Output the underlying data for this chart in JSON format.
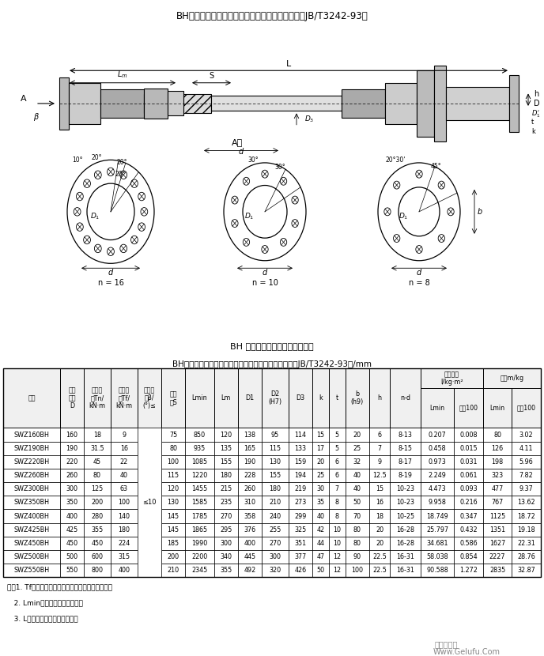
{
  "title_top": "BH型标准伸缩焊接式万向联轴器外形及安装尺寸（JB/T3242-93）",
  "table_title": "BH型标准伸缩焊接式万向联轴器基本参数和主要尺寸（JB/T3242-93）/mm",
  "caption_bottom": "BH 型标准伸缩焊接式万向联轴器",
  "note1": "注：1. Tf为在交变负荷下按疲劳强度所允许的转矩。",
  "note2": "   2. Lmin为缩短后的最小长度。",
  "note3": "   3. L为安装长度，按需要确定。",
  "watermark1": "格鲁夫机械",
  "watermark2": "Www.Gelufu.Com",
  "data_rows": [
    [
      "SWZ160BH",
      "160",
      "18",
      "9",
      "75",
      "850",
      "120",
      "138",
      "95",
      "114",
      "15",
      "5",
      "20",
      "6",
      "8-13",
      "0.207",
      "0.008",
      "80",
      "3.02"
    ],
    [
      "SWZ190BH",
      "190",
      "31.5",
      "16",
      "80",
      "935",
      "135",
      "165",
      "115",
      "133",
      "17",
      "5",
      "25",
      "7",
      "8-15",
      "0.458",
      "0.015",
      "126",
      "4.11"
    ],
    [
      "SWZ220BH",
      "220",
      "45",
      "22",
      "100",
      "1085",
      "155",
      "190",
      "130",
      "159",
      "20",
      "6",
      "32",
      "9",
      "8-17",
      "0.973",
      "0.031",
      "198",
      "5.96"
    ],
    [
      "SWZ260BH",
      "260",
      "80",
      "40",
      "115",
      "1220",
      "180",
      "228",
      "155",
      "194",
      "25",
      "6",
      "40",
      "12.5",
      "8-19",
      "2.249",
      "0.061",
      "323",
      "7.82"
    ],
    [
      "SWZ300BH",
      "300",
      "125",
      "63",
      "120",
      "1455",
      "215",
      "260",
      "180",
      "219",
      "30",
      "7",
      "40",
      "15",
      "10-23",
      "4.473",
      "0.093",
      "477",
      "9.37"
    ],
    [
      "SWZ350BH",
      "350",
      "200",
      "100",
      "130",
      "1585",
      "235",
      "310",
      "210",
      "273",
      "35",
      "8",
      "50",
      "16",
      "10-23",
      "9.958",
      "0.216",
      "767",
      "13.62"
    ],
    [
      "SWZ400BH",
      "400",
      "280",
      "140",
      "145",
      "1785",
      "270",
      "358",
      "240",
      "299",
      "40",
      "8",
      "70",
      "18",
      "10-25",
      "18.749",
      "0.347",
      "1125",
      "18.72"
    ],
    [
      "SWZ425BH",
      "425",
      "355",
      "180",
      "145",
      "1865",
      "295",
      "376",
      "255",
      "325",
      "42",
      "10",
      "80",
      "20",
      "16-28",
      "25.797",
      "0.432",
      "1351",
      "19.18"
    ],
    [
      "SWZ450BH",
      "450",
      "450",
      "224",
      "185",
      "1990",
      "300",
      "400",
      "270",
      "351",
      "44",
      "10",
      "80",
      "20",
      "16-28",
      "34.681",
      "0.586",
      "1627",
      "22.31"
    ],
    [
      "SWZ500BH",
      "500",
      "600",
      "315",
      "200",
      "2200",
      "340",
      "445",
      "300",
      "377",
      "47",
      "12",
      "90",
      "22.5",
      "16-31",
      "58.038",
      "0.854",
      "2227",
      "28.76"
    ],
    [
      "SWZ550BH",
      "550",
      "800",
      "400",
      "210",
      "2345",
      "355",
      "492",
      "320",
      "426",
      "50",
      "12",
      "100",
      "22.5",
      "16-31",
      "90.588",
      "1.272",
      "2835",
      "32.87"
    ]
  ]
}
